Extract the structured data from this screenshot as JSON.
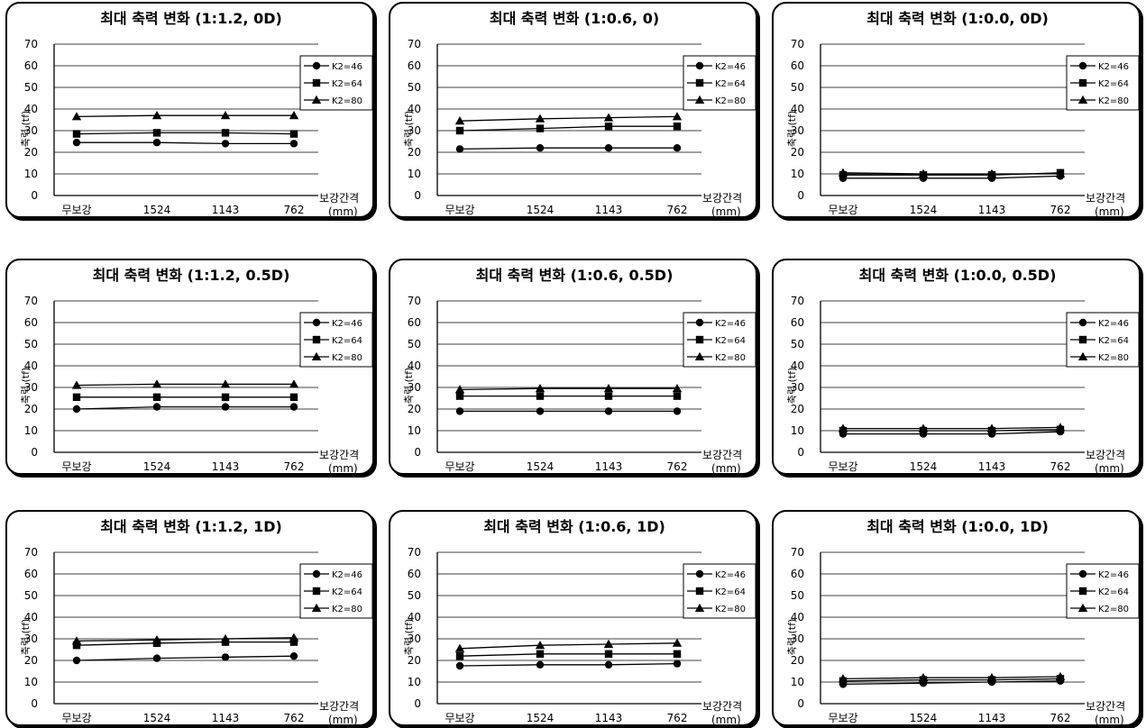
{
  "chart_data": [
    {
      "type": "line",
      "title": "최대 축력 변화 (1:1.2, 0D)",
      "ylabel": "축력 (tf)",
      "xlabel": "보강간격",
      "xunit": "(mm)",
      "ylim": [
        0,
        70
      ],
      "yticks": [
        0,
        10,
        20,
        30,
        40,
        50,
        60,
        70
      ],
      "categories": [
        "무보강",
        "1524",
        "1143",
        "762"
      ],
      "legend": "right",
      "series": [
        {
          "name": "K2=46",
          "marker": "circle",
          "values": [
            24.5,
            24.5,
            24,
            24
          ]
        },
        {
          "name": "K2=64",
          "marker": "square",
          "values": [
            28.5,
            29,
            29,
            28.5
          ]
        },
        {
          "name": "K2=80",
          "marker": "triangle",
          "values": [
            36.5,
            37,
            37,
            37
          ]
        }
      ]
    },
    {
      "type": "line",
      "title": "최대 축력 변화 (1:0.6, 0)",
      "ylabel": "축력 (tf)",
      "xlabel": "보강간격",
      "xunit": "(mm)",
      "ylim": [
        0,
        70
      ],
      "yticks": [
        0,
        10,
        20,
        30,
        40,
        50,
        60,
        70
      ],
      "categories": [
        "무보강",
        "1524",
        "1143",
        "762"
      ],
      "legend": "right",
      "series": [
        {
          "name": "K2=46",
          "marker": "circle",
          "values": [
            21.5,
            22,
            22,
            22
          ]
        },
        {
          "name": "K2=64",
          "marker": "square",
          "values": [
            30,
            31,
            32,
            32
          ]
        },
        {
          "name": "K2=80",
          "marker": "triangle",
          "values": [
            34.5,
            35.5,
            36,
            36.5
          ]
        }
      ]
    },
    {
      "type": "line",
      "title": "최대 축력 변화 (1:0.0, 0D)",
      "ylabel": "축력 (tf)",
      "xlabel": "보강간격",
      "xunit": "(mm)",
      "ylim": [
        0,
        70
      ],
      "yticks": [
        0,
        10,
        20,
        30,
        40,
        50,
        60,
        70
      ],
      "categories": [
        "무보강",
        "1524",
        "1143",
        "762"
      ],
      "legend": "right",
      "series": [
        {
          "name": "K2=46",
          "marker": "circle",
          "values": [
            8,
            8,
            8,
            9
          ]
        },
        {
          "name": "K2=64",
          "marker": "square",
          "values": [
            9.5,
            9.5,
            9.5,
            10.5
          ]
        },
        {
          "name": "K2=80",
          "marker": "triangle",
          "values": [
            10.5,
            10,
            10,
            10
          ]
        }
      ]
    },
    {
      "type": "line",
      "title": "최대 축력 변화 (1:1.2, 0.5D)",
      "ylabel": "축력 (tf)",
      "xlabel": "보강간격",
      "xunit": "(mm)",
      "ylim": [
        0,
        70
      ],
      "yticks": [
        0,
        10,
        20,
        30,
        40,
        50,
        60,
        70
      ],
      "categories": [
        "무보강",
        "1524",
        "1143",
        "762"
      ],
      "legend": "right",
      "series": [
        {
          "name": "K2=46",
          "marker": "circle",
          "values": [
            20,
            21,
            21,
            21
          ]
        },
        {
          "name": "K2=64",
          "marker": "square",
          "values": [
            25.5,
            25.5,
            25.5,
            25.5
          ]
        },
        {
          "name": "K2=80",
          "marker": "triangle",
          "values": [
            31,
            31.5,
            31.5,
            31.5
          ]
        }
      ]
    },
    {
      "type": "line",
      "title": "최대 축력 변화 (1:0.6, 0.5D)",
      "ylabel": "축력 (tf)",
      "xlabel": "보강간격",
      "xunit": "(mm)",
      "ylim": [
        0,
        70
      ],
      "yticks": [
        0,
        10,
        20,
        30,
        40,
        50,
        60,
        70
      ],
      "categories": [
        "무보강",
        "1524",
        "1143",
        "762"
      ],
      "legend": "right",
      "series": [
        {
          "name": "K2=46",
          "marker": "circle",
          "values": [
            19,
            19,
            19,
            19
          ]
        },
        {
          "name": "K2=64",
          "marker": "square",
          "values": [
            26,
            26,
            26,
            26
          ]
        },
        {
          "name": "K2=80",
          "marker": "triangle",
          "values": [
            29,
            29.5,
            29.5,
            29.5
          ]
        }
      ]
    },
    {
      "type": "line",
      "title": "최대 축력 변화 (1:0.0, 0.5D)",
      "ylabel": "축력 (tf)",
      "xlabel": "보강간격",
      "xunit": "(mm)",
      "ylim": [
        0,
        70
      ],
      "yticks": [
        0,
        10,
        20,
        30,
        40,
        50,
        60,
        70
      ],
      "categories": [
        "무보강",
        "1524",
        "1143",
        "762"
      ],
      "legend": "right",
      "series": [
        {
          "name": "K2=46",
          "marker": "circle",
          "values": [
            8.5,
            8.5,
            8.5,
            9.5
          ]
        },
        {
          "name": "K2=64",
          "marker": "square",
          "values": [
            10,
            10,
            10,
            10.5
          ]
        },
        {
          "name": "K2=80",
          "marker": "triangle",
          "values": [
            11,
            11,
            11,
            11.5
          ]
        }
      ]
    },
    {
      "type": "line",
      "title": "최대 축력 변화 (1:1.2, 1D)",
      "ylabel": "축력 (tf)",
      "xlabel": "보강간격",
      "xunit": "(mm)",
      "ylim": [
        0,
        70
      ],
      "yticks": [
        0,
        10,
        20,
        30,
        40,
        50,
        60,
        70
      ],
      "categories": [
        "무보강",
        "1524",
        "1143",
        "762"
      ],
      "legend": "right",
      "series": [
        {
          "name": "K2=46",
          "marker": "circle",
          "values": [
            20,
            21,
            21.5,
            22
          ]
        },
        {
          "name": "K2=64",
          "marker": "square",
          "values": [
            27,
            28,
            28.5,
            28.5
          ]
        },
        {
          "name": "K2=80",
          "marker": "triangle",
          "values": [
            29,
            29.5,
            30,
            30.5
          ]
        }
      ]
    },
    {
      "type": "line",
      "title": "최대 축력 변화 (1:0.6, 1D)",
      "ylabel": "축력 (tf)",
      "xlabel": "보강간격",
      "xunit": "(mm)",
      "ylim": [
        0,
        70
      ],
      "yticks": [
        0,
        10,
        20,
        30,
        40,
        50,
        60,
        70
      ],
      "categories": [
        "무보강",
        "1524",
        "1143",
        "762"
      ],
      "legend": "right",
      "series": [
        {
          "name": "K2=46",
          "marker": "circle",
          "values": [
            17.5,
            18,
            18,
            18.5
          ]
        },
        {
          "name": "K2=64",
          "marker": "square",
          "values": [
            22,
            23,
            23,
            23
          ]
        },
        {
          "name": "K2=80",
          "marker": "triangle",
          "values": [
            25.5,
            27,
            27.5,
            28
          ]
        }
      ]
    },
    {
      "type": "line",
      "title": "최대 축력 변화 (1:0.0, 1D)",
      "ylabel": "축력 (tf)",
      "xlabel": "보강간격",
      "xunit": "(mm)",
      "ylim": [
        0,
        70
      ],
      "yticks": [
        0,
        10,
        20,
        30,
        40,
        50,
        60,
        70
      ],
      "categories": [
        "무보강",
        "1524",
        "1143",
        "762"
      ],
      "legend": "right",
      "series": [
        {
          "name": "K2=46",
          "marker": "circle",
          "values": [
            9,
            9.5,
            10,
            10.5
          ]
        },
        {
          "name": "K2=64",
          "marker": "square",
          "values": [
            10.5,
            11,
            11,
            11.5
          ]
        },
        {
          "name": "K2=80",
          "marker": "triangle",
          "values": [
            11.5,
            12,
            12,
            12.5
          ]
        }
      ]
    }
  ],
  "style": {
    "line_color": "#000000",
    "grid_color": "#000000",
    "background": "#ffffff"
  }
}
